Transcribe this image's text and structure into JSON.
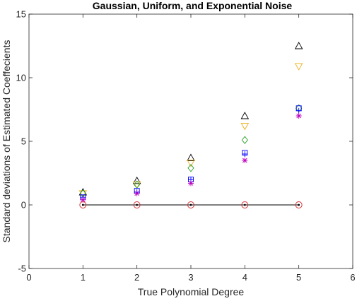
{
  "chart_data": {
    "type": "scatter",
    "title": "Gaussian, Uniform, and Exponential Noise",
    "xlabel": "True Polynomial Degree",
    "ylabel": "Standard deviations of Estimated Coeffecients",
    "xlim": [
      0,
      6
    ],
    "ylim": [
      -5,
      15
    ],
    "xticks": [
      "0",
      "1",
      "2",
      "3",
      "4",
      "5",
      "6"
    ],
    "yticks": [
      "-5",
      "0",
      "5",
      "10",
      "15"
    ],
    "grid": false,
    "legend": "none",
    "reference_line": {
      "y": 0,
      "x_from": 1,
      "x_to": 5,
      "color": "#000000"
    },
    "series": [
      {
        "marker": "triangle-up",
        "color": "#000000",
        "x": [
          1,
          2,
          3,
          4,
          5
        ],
        "y": [
          1.0,
          1.9,
          3.7,
          7.0,
          12.5
        ]
      },
      {
        "marker": "triangle-down",
        "color": "#EDB120",
        "x": [
          1,
          2,
          3,
          4,
          5
        ],
        "y": [
          0.9,
          1.6,
          3.3,
          6.2,
          10.9
        ]
      },
      {
        "marker": "diamond",
        "color": "#2CA02C",
        "x": [
          1,
          2,
          3,
          4,
          5
        ],
        "y": [
          0.9,
          1.6,
          2.9,
          5.1,
          7.6
        ]
      },
      {
        "marker": "square",
        "color": "#0000FF",
        "x": [
          1,
          2,
          3,
          4,
          5
        ],
        "y": [
          0.6,
          1.1,
          2.0,
          4.1,
          7.6
        ]
      },
      {
        "marker": "plus",
        "color": "#0000FF",
        "x": [
          1,
          2,
          3,
          4,
          5
        ],
        "y": [
          0.6,
          1.0,
          2.0,
          4.0,
          7.4
        ]
      },
      {
        "marker": "asterisk",
        "color": "#BF00BF",
        "x": [
          1,
          2,
          3,
          4,
          5
        ],
        "y": [
          0.4,
          0.9,
          1.7,
          3.5,
          7.0
        ]
      },
      {
        "marker": "circle",
        "color": "#D62728",
        "x": [
          1,
          2,
          3,
          4,
          5
        ],
        "y": [
          0,
          0,
          0,
          0,
          0
        ]
      },
      {
        "marker": "dot",
        "color": "#000000",
        "x": [
          1,
          2,
          3,
          4,
          5
        ],
        "y": [
          0,
          0,
          0,
          0,
          0
        ]
      }
    ]
  }
}
